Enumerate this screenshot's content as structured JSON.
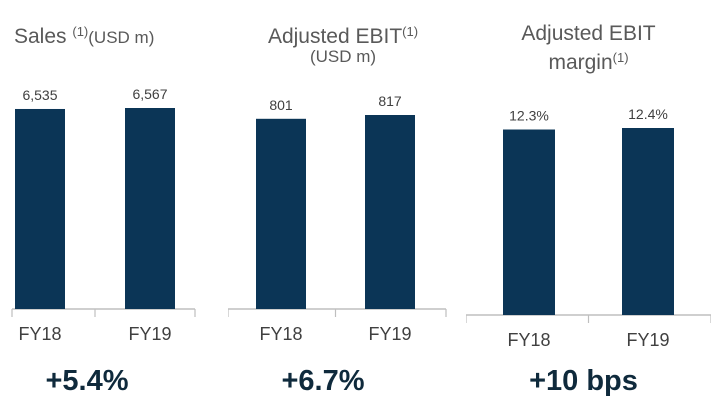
{
  "chart_data": [
    {
      "type": "bar",
      "title": "Sales",
      "title_note": "(1)",
      "unit": "(USD m)",
      "categories": [
        "FY18",
        "FY19"
      ],
      "values": [
        6535,
        6567
      ],
      "value_labels": [
        "6,535",
        "6,567"
      ],
      "change": "+5.4%"
    },
    {
      "type": "bar",
      "title": "Adjusted EBIT",
      "title_note": "(1)",
      "unit": "(USD m)",
      "categories": [
        "FY18",
        "FY19"
      ],
      "values": [
        801,
        817
      ],
      "value_labels": [
        "801",
        "817"
      ],
      "change": "+6.7%"
    },
    {
      "type": "bar",
      "title_line1": "Adjusted EBIT",
      "title_line2": "margin",
      "title_note": "(1)",
      "categories": [
        "FY18",
        "FY19"
      ],
      "values": [
        12.3,
        12.4
      ],
      "value_labels": [
        "12.3%",
        "12.4%"
      ],
      "change": "+10 bps"
    }
  ],
  "colors": {
    "bar": "#0b3556",
    "axis": "#bfbfbf",
    "text": "#404040"
  }
}
